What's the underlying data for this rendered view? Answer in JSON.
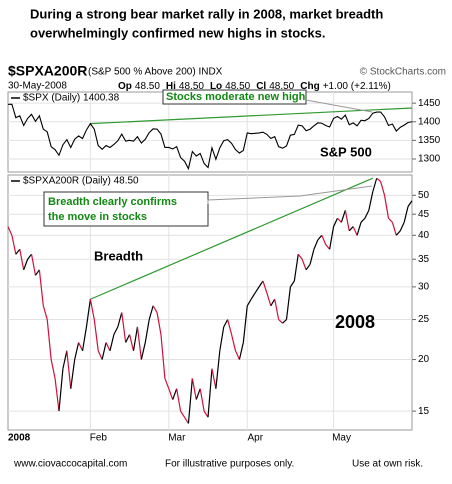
{
  "header": {
    "title_lines": [
      "During a strong bear market rally in 2008, market breadth",
      "overwhelmingly confirmed new highs in stocks."
    ],
    "symbol": "$SPXA200R",
    "description": "(S&P 500 % Above 200) INDX",
    "source": "© StockCharts.com",
    "date": "30-May-2008",
    "quote": [
      {
        "label": "Op",
        "value": "48.50"
      },
      {
        "label": "Hi",
        "value": "48.50"
      },
      {
        "label": "Lo",
        "value": "48.50"
      },
      {
        "label": "Cl",
        "value": "48.50"
      },
      {
        "label": "Chg",
        "value": "+1.00 (+2.11%)"
      }
    ]
  },
  "chart_data": [
    {
      "type": "line",
      "series": [
        {
          "name": "$SPX (Daily) 1400.38",
          "color": "#000000",
          "values": [
            1447,
            1447,
            1411,
            1416,
            1390,
            1409,
            1420,
            1401,
            1416,
            1380,
            1373,
            1333,
            1325,
            1310,
            1338,
            1352,
            1331,
            1353,
            1362,
            1355,
            1378,
            1395,
            1380,
            1336,
            1326,
            1336,
            1331,
            1339,
            1349,
            1367,
            1348,
            1350,
            1348,
            1360,
            1343,
            1353,
            1371,
            1381,
            1380,
            1367,
            1331,
            1331,
            1327,
            1333,
            1304,
            1294,
            1274,
            1320,
            1308,
            1315,
            1288,
            1277,
            1330,
            1299,
            1330,
            1349,
            1352,
            1342,
            1325,
            1316,
            1323,
            1370,
            1368,
            1369,
            1370,
            1372,
            1366,
            1355,
            1360,
            1333,
            1329,
            1335,
            1364,
            1366,
            1391,
            1389,
            1376,
            1380,
            1389,
            1397,
            1396,
            1390,
            1386,
            1409,
            1414,
            1407,
            1418,
            1392,
            1397,
            1389,
            1404,
            1403,
            1409,
            1423,
            1426,
            1426,
            1413,
            1390,
            1394,
            1375,
            1385,
            1391,
            1398,
            1400
          ]
        }
      ],
      "ylim": [
        1265,
        1480
      ],
      "yticks": [
        1300,
        1350,
        1400,
        1450
      ],
      "log": false,
      "grid": true,
      "trendlines": [
        {
          "x": [
            21,
            103
          ],
          "y": [
            1395,
            1437
          ],
          "color": "#2e9a2e"
        }
      ],
      "annotations": [
        "Stocks moderate new high",
        "S&P 500"
      ]
    },
    {
      "type": "line",
      "categories": [
        "2008",
        null,
        null,
        null,
        null,
        null,
        null,
        null,
        null,
        null,
        null,
        null,
        null,
        null,
        null,
        null,
        null,
        null,
        null,
        null,
        null,
        "Feb",
        null,
        null,
        null,
        null,
        null,
        null,
        null,
        null,
        null,
        null,
        null,
        null,
        null,
        null,
        null,
        null,
        null,
        null,
        null,
        "Mar",
        null,
        null,
        null,
        null,
        null,
        null,
        null,
        null,
        null,
        null,
        null,
        null,
        null,
        null,
        null,
        null,
        null,
        null,
        null,
        "Apr",
        null,
        null,
        null,
        null,
        null,
        null,
        null,
        null,
        null,
        null,
        null,
        null,
        null,
        null,
        null,
        null,
        null,
        null,
        null,
        null,
        null,
        "May",
        null,
        null,
        null,
        null,
        null,
        null,
        null,
        null,
        null,
        null,
        null,
        null,
        null,
        null,
        null,
        null,
        null,
        null,
        null,
        null
      ],
      "series": [
        {
          "name": "$SPXA200R (Daily) 48.50",
          "color": "#000000",
          "down_color": "#d0103a",
          "values": [
            42,
            40,
            36,
            37,
            33,
            35,
            36,
            32,
            33,
            27,
            25,
            20,
            18,
            15,
            19,
            21,
            17,
            20,
            22,
            21,
            24,
            28,
            25,
            21,
            20,
            22,
            21,
            23,
            24,
            26,
            22,
            23,
            21,
            24,
            20,
            22,
            25,
            27,
            26,
            23,
            18,
            17,
            16,
            17,
            15,
            14.5,
            14,
            18,
            16,
            17,
            15,
            14.5,
            19,
            17,
            21,
            24,
            25,
            23,
            21,
            20,
            22,
            27,
            28,
            29,
            30,
            31,
            29,
            27,
            28,
            25,
            24.5,
            25,
            30,
            31,
            36,
            35,
            33,
            34,
            37,
            39,
            40,
            38,
            37,
            42,
            44,
            43,
            46,
            41,
            42,
            40,
            43,
            44,
            46,
            51,
            55,
            54,
            50,
            44,
            43,
            40,
            41,
            43,
            47,
            48.5
          ]
        }
      ],
      "ylim": [
        13.5,
        56
      ],
      "yticks": [
        15,
        20,
        25,
        30,
        35,
        40,
        45,
        50
      ],
      "log": true,
      "grid": true,
      "trendlines": [
        {
          "x": [
            21,
            93
          ],
          "y": [
            28,
            55
          ],
          "color": "#2e9a2e"
        }
      ],
      "annotations": [
        "Breadth clearly confirms",
        "the move in stocks",
        "Breadth",
        "2008"
      ]
    }
  ],
  "footer": [
    "www.ciovaccocapital.com",
    "For illustrative purposes only.",
    "Use at own risk."
  ]
}
